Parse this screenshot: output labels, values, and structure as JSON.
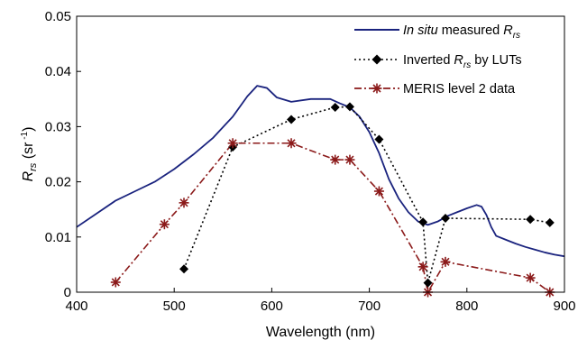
{
  "chart_data": {
    "type": "line",
    "xlabel": "Wavelength (nm)",
    "ylabel": {
      "main": "R",
      "sub": "rs",
      "unit_open": " (sr",
      "unit_sup": " -1",
      "unit_close": ")"
    },
    "xlim": [
      400,
      900
    ],
    "ylim": [
      0,
      0.05
    ],
    "x_ticks": [
      400,
      500,
      600,
      700,
      800,
      900
    ],
    "x_tick_labels": [
      "400",
      "500",
      "600",
      "700",
      "800",
      "900"
    ],
    "y_ticks": [
      0,
      0.01,
      0.02,
      0.03,
      0.04,
      0.05
    ],
    "y_tick_labels": [
      "0",
      "0.01",
      "0.02",
      "0.03",
      "0.04",
      "0.05"
    ],
    "legend_position": "top-right",
    "series": [
      {
        "id": "insitu",
        "legend": {
          "italic_prefix": "In situ",
          "text": " measured ",
          "main": "R",
          "sub": "rs"
        },
        "color": "#1a237e",
        "style": "solid",
        "marker": "none",
        "x": [
          400,
          420,
          440,
          460,
          480,
          500,
          520,
          540,
          560,
          575,
          585,
          595,
          605,
          620,
          640,
          660,
          670,
          680,
          690,
          700,
          710,
          720,
          730,
          740,
          750,
          760,
          770,
          780,
          790,
          800,
          810,
          815,
          820,
          825,
          830,
          840,
          850,
          860,
          870,
          880,
          890,
          900
        ],
        "y": [
          0.0118,
          0.0142,
          0.0166,
          0.0183,
          0.02,
          0.0223,
          0.025,
          0.028,
          0.0318,
          0.0355,
          0.0374,
          0.037,
          0.0353,
          0.0345,
          0.035,
          0.035,
          0.0342,
          0.0335,
          0.0318,
          0.029,
          0.0252,
          0.0205,
          0.017,
          0.0145,
          0.0128,
          0.0122,
          0.0128,
          0.0138,
          0.0145,
          0.0152,
          0.0158,
          0.0155,
          0.014,
          0.0118,
          0.0102,
          0.0095,
          0.0088,
          0.0082,
          0.0077,
          0.0072,
          0.0068,
          0.0065
        ]
      },
      {
        "id": "luts",
        "legend": {
          "italic_prefix": "",
          "text": "Inverted ",
          "main": "R",
          "sub": "rs",
          "suffix": " by LUTs"
        },
        "color": "#000000",
        "style": "dotted",
        "marker": "diamond",
        "x": [
          510,
          560,
          620,
          665,
          680,
          710,
          755,
          760,
          778,
          865,
          885
        ],
        "y": [
          0.0042,
          0.0263,
          0.0313,
          0.0335,
          0.0336,
          0.0277,
          0.0127,
          0.0017,
          0.0134,
          0.0132,
          0.0126
        ]
      },
      {
        "id": "meris",
        "legend": {
          "italic_prefix": "",
          "text": "MERIS level 2 data",
          "main": "",
          "sub": ""
        },
        "color": "#8b1a1a",
        "style": "dashdot",
        "marker": "asterisk",
        "x": [
          440,
          490,
          510,
          560,
          620,
          665,
          680,
          710,
          755,
          760,
          778,
          865,
          885
        ],
        "y": [
          0.0018,
          0.0123,
          0.0162,
          0.027,
          0.027,
          0.024,
          0.024,
          0.0183,
          0.0046,
          0.0,
          0.0055,
          0.0026,
          0.0
        ]
      }
    ]
  }
}
